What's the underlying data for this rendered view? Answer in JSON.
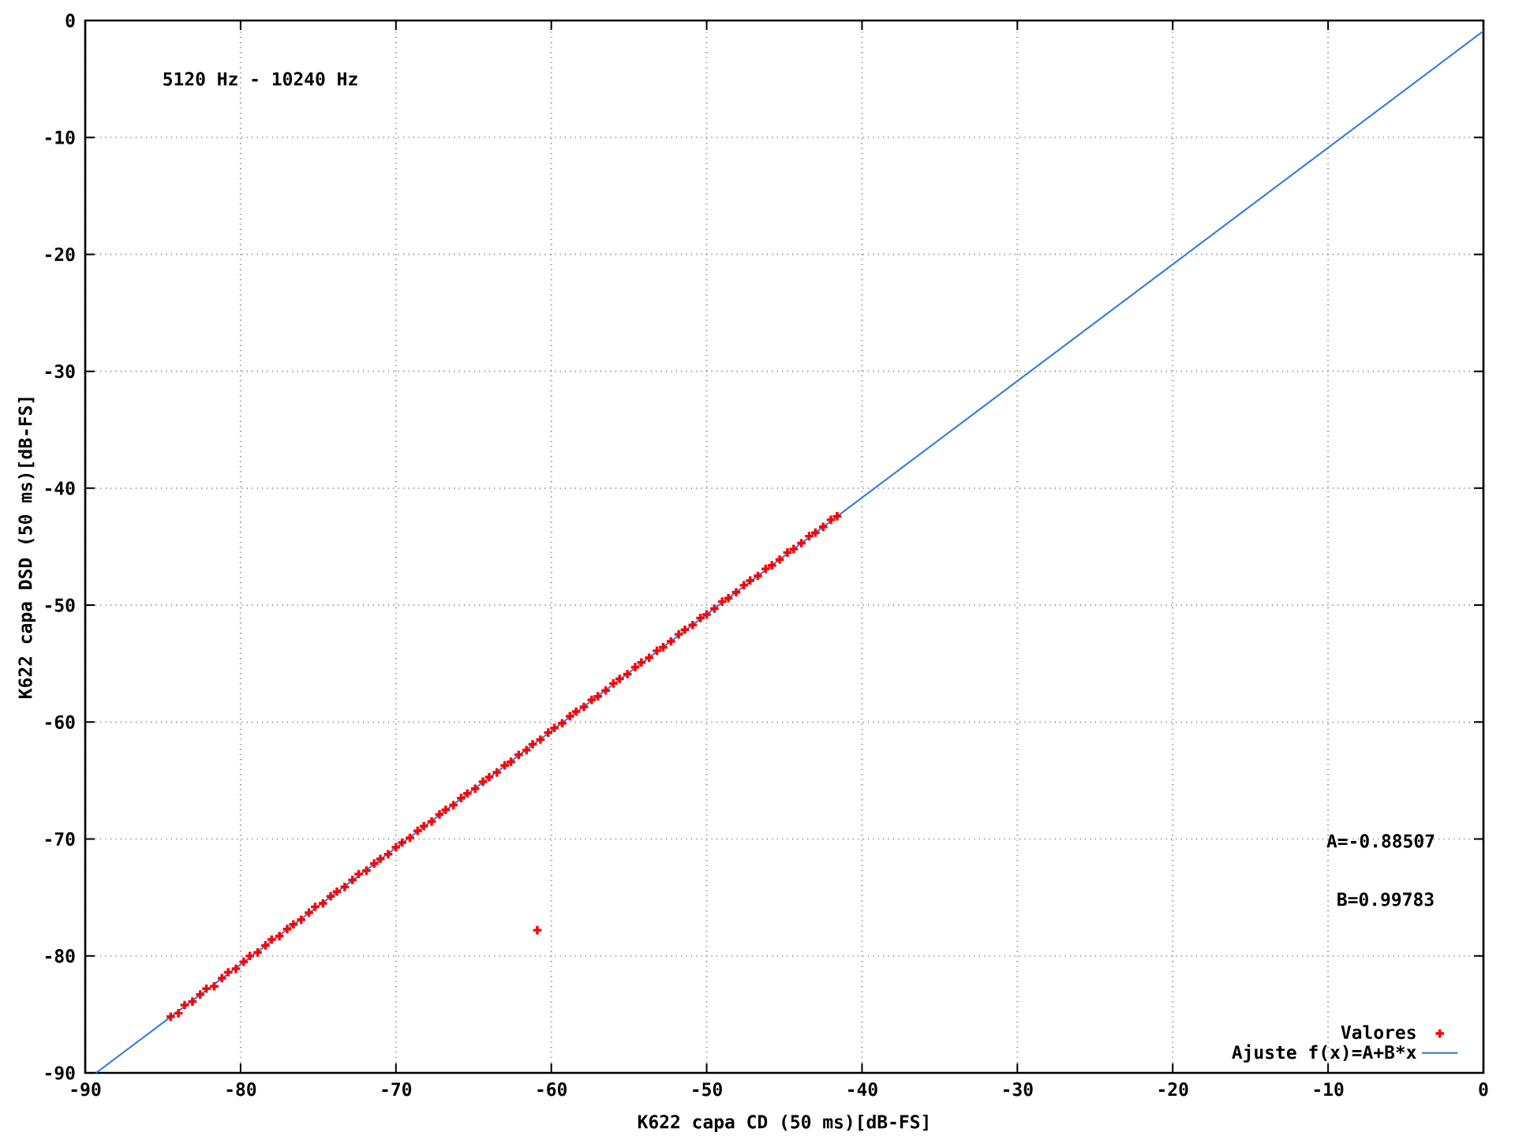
{
  "chart_data": {
    "type": "scatter",
    "xlabel": "K622 capa CD (50 ms)[dB-FS]",
    "ylabel": "K622 capa DSD (50 ms)[dB-FS]",
    "annotations": [
      "5120 Hz - 10240 Hz",
      "A=-0.88507",
      "B=0.99783"
    ],
    "xlim": [
      -90,
      0
    ],
    "ylim": [
      -90,
      0
    ],
    "xticks": [
      -90,
      -80,
      -70,
      -60,
      -50,
      -40,
      -30,
      -20,
      -10,
      0
    ],
    "yticks": [
      -90,
      -80,
      -70,
      -60,
      -50,
      -40,
      -30,
      -20,
      -10,
      0
    ],
    "grid": true,
    "legend": "bottom right",
    "series": [
      {
        "name": "Valores",
        "color": "#ff0000",
        "marker": "cross",
        "x": [
          -84.5,
          -84.0,
          -83.6,
          -83.1,
          -82.6,
          -82.2,
          -81.7,
          -81.2,
          -80.8,
          -80.3,
          -79.8,
          -79.4,
          -78.9,
          -78.4,
          -78.0,
          -77.5,
          -77.0,
          -76.6,
          -76.1,
          -75.6,
          -75.2,
          -74.7,
          -74.2,
          -73.8,
          -73.3,
          -72.8,
          -72.4,
          -71.9,
          -71.4,
          -71.0,
          -70.5,
          -70.0,
          -69.6,
          -69.1,
          -68.6,
          -68.2,
          -67.7,
          -67.2,
          -66.8,
          -66.3,
          -65.8,
          -65.4,
          -64.9,
          -64.4,
          -64.0,
          -63.5,
          -63.0,
          -62.6,
          -62.1,
          -61.6,
          -61.2,
          -60.7,
          -60.2,
          -59.8,
          -59.3,
          -58.8,
          -58.4,
          -57.9,
          -57.4,
          -57.0,
          -56.5,
          -56.0,
          -55.6,
          -55.1,
          -54.6,
          -54.2,
          -53.7,
          -53.2,
          -52.8,
          -52.3,
          -51.8,
          -51.4,
          -50.9,
          -50.4,
          -50.0,
          -49.5,
          -49.0,
          -48.6,
          -48.1,
          -47.6,
          -47.2,
          -46.7,
          -46.2,
          -45.8,
          -45.3,
          -44.8,
          -44.4,
          -43.9,
          -43.4,
          -43.0,
          -42.5,
          -42.0,
          -41.6,
          -60.9
        ],
        "values": [
          -85.2,
          -84.9,
          -84.2,
          -83.9,
          -83.3,
          -82.8,
          -82.6,
          -81.9,
          -81.4,
          -81.1,
          -80.5,
          -80.0,
          -79.7,
          -79.1,
          -78.6,
          -78.3,
          -77.7,
          -77.3,
          -76.9,
          -76.3,
          -75.8,
          -75.5,
          -74.9,
          -74.5,
          -74.1,
          -73.5,
          -73.0,
          -72.7,
          -72.1,
          -71.7,
          -71.3,
          -70.7,
          -70.3,
          -69.9,
          -69.3,
          -68.9,
          -68.5,
          -67.9,
          -67.5,
          -67.1,
          -66.5,
          -66.1,
          -65.7,
          -65.1,
          -64.7,
          -64.3,
          -63.7,
          -63.4,
          -62.8,
          -62.4,
          -61.9,
          -61.5,
          -60.9,
          -60.5,
          -60.1,
          -59.5,
          -59.1,
          -58.7,
          -58.1,
          -57.8,
          -57.3,
          -56.7,
          -56.3,
          -55.9,
          -55.3,
          -54.9,
          -54.5,
          -53.9,
          -53.6,
          -53.1,
          -52.5,
          -52.1,
          -51.7,
          -51.1,
          -50.8,
          -50.3,
          -49.7,
          -49.4,
          -48.9,
          -48.3,
          -47.9,
          -47.5,
          -46.9,
          -46.6,
          -46.1,
          -45.5,
          -45.2,
          -44.7,
          -44.1,
          -43.8,
          -43.3,
          -42.7,
          -42.4,
          -77.8
        ]
      },
      {
        "name": "Ajuste f(x)=A+B*x",
        "type": "line",
        "color": "#2878e0",
        "line_style": "solid",
        "x": [
          -89.3,
          0
        ],
        "values": [
          -90,
          -0.9
        ]
      }
    ]
  }
}
